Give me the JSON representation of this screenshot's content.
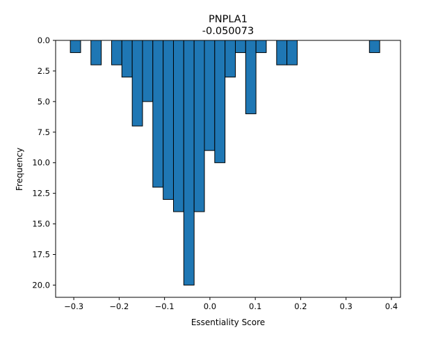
{
  "chart_data": {
    "type": "bar",
    "title": "PNPLA1",
    "subtitle": "-0.050073",
    "xlabel": "Essentiality Score",
    "ylabel": "Frequency",
    "xlim": [
      -0.34,
      0.42
    ],
    "ylim": [
      21.0,
      0
    ],
    "y_inverted": true,
    "grid": false,
    "bar_color": "#1f77b4",
    "edge_color": "#000000",
    "bin_width": 0.0227,
    "x_ticks": [
      {
        "value": -0.3,
        "label": "−0.3"
      },
      {
        "value": -0.2,
        "label": "−0.2"
      },
      {
        "value": -0.1,
        "label": "−0.1"
      },
      {
        "value": 0.0,
        "label": "0.0"
      },
      {
        "value": 0.1,
        "label": "0.1"
      },
      {
        "value": 0.2,
        "label": "0.2"
      },
      {
        "value": 0.3,
        "label": "0.3"
      },
      {
        "value": 0.4,
        "label": "0.4"
      }
    ],
    "y_ticks": [
      {
        "value": 0.0,
        "label": "0.0"
      },
      {
        "value": 2.5,
        "label": "2.5"
      },
      {
        "value": 5.0,
        "label": "5.0"
      },
      {
        "value": 7.5,
        "label": "7.5"
      },
      {
        "value": 10.0,
        "label": "10.0"
      },
      {
        "value": 12.5,
        "label": "12.5"
      },
      {
        "value": 15.0,
        "label": "15.0"
      },
      {
        "value": 17.5,
        "label": "17.5"
      },
      {
        "value": 20.0,
        "label": "20.0"
      }
    ],
    "bins": [
      {
        "x0": -0.3076,
        "x1": -0.2849,
        "count": 1
      },
      {
        "x0": -0.2849,
        "x1": -0.2622,
        "count": 0
      },
      {
        "x0": -0.2622,
        "x1": -0.2394,
        "count": 2
      },
      {
        "x0": -0.2394,
        "x1": -0.2167,
        "count": 0
      },
      {
        "x0": -0.2167,
        "x1": -0.194,
        "count": 2
      },
      {
        "x0": -0.194,
        "x1": -0.1712,
        "count": 3
      },
      {
        "x0": -0.1712,
        "x1": -0.1485,
        "count": 7
      },
      {
        "x0": -0.1485,
        "x1": -0.1258,
        "count": 5
      },
      {
        "x0": -0.1258,
        "x1": -0.103,
        "count": 12
      },
      {
        "x0": -0.103,
        "x1": -0.0803,
        "count": 13
      },
      {
        "x0": -0.0803,
        "x1": -0.0576,
        "count": 14
      },
      {
        "x0": -0.0576,
        "x1": -0.0348,
        "count": 20
      },
      {
        "x0": -0.0348,
        "x1": -0.0121,
        "count": 14
      },
      {
        "x0": -0.0121,
        "x1": 0.0106,
        "count": 9
      },
      {
        "x0": 0.0106,
        "x1": 0.0333,
        "count": 10
      },
      {
        "x0": 0.0333,
        "x1": 0.0561,
        "count": 3
      },
      {
        "x0": 0.0561,
        "x1": 0.0788,
        "count": 1
      },
      {
        "x0": 0.0788,
        "x1": 0.1015,
        "count": 6
      },
      {
        "x0": 0.1015,
        "x1": 0.1242,
        "count": 1
      },
      {
        "x0": 0.1242,
        "x1": 0.147,
        "count": 0
      },
      {
        "x0": 0.147,
        "x1": 0.1697,
        "count": 2
      },
      {
        "x0": 0.1697,
        "x1": 0.1924,
        "count": 2
      },
      {
        "x0": 0.1924,
        "x1": 0.2152,
        "count": 0
      },
      {
        "x0": 0.2152,
        "x1": 0.2379,
        "count": 0
      },
      {
        "x0": 0.2379,
        "x1": 0.2606,
        "count": 0
      },
      {
        "x0": 0.2606,
        "x1": 0.2833,
        "count": 0
      },
      {
        "x0": 0.2833,
        "x1": 0.3061,
        "count": 0
      },
      {
        "x0": 0.3061,
        "x1": 0.3288,
        "count": 0
      },
      {
        "x0": 0.3288,
        "x1": 0.3515,
        "count": 0
      },
      {
        "x0": 0.3515,
        "x1": 0.3742,
        "count": 1
      }
    ]
  }
}
